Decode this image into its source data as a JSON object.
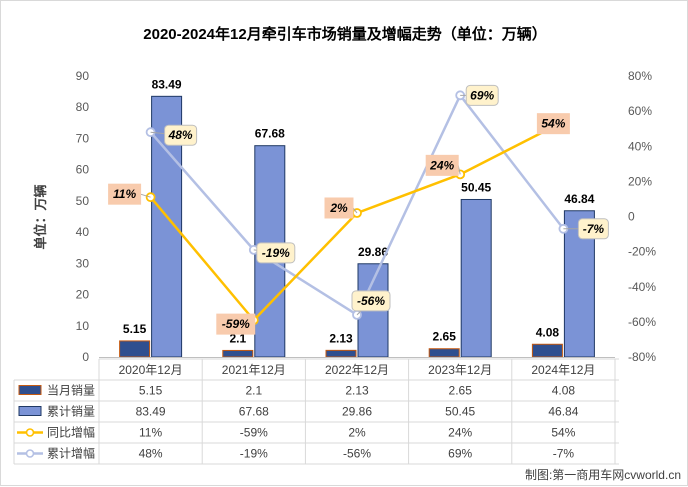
{
  "chart_data": {
    "type": "bar",
    "title": "2020-2024年12月牵引车市场销量及增幅走势（单位：万辆）",
    "ylabel": "单位：万辆",
    "categories": [
      "2020年12月",
      "2021年12月",
      "2022年12月",
      "2023年12月",
      "2024年12月"
    ],
    "ylim": [
      0,
      90
    ],
    "yticks": [
      "0",
      "10",
      "20",
      "30",
      "40",
      "50",
      "60",
      "70",
      "80",
      "90"
    ],
    "y2lim": [
      -80,
      80
    ],
    "y2ticks": [
      "-80%",
      "-60%",
      "-40%",
      "-20%",
      "0",
      "20%",
      "40%",
      "60%",
      "80%"
    ],
    "series": [
      {
        "name": "当月销量",
        "kind": "bar",
        "axis": "left",
        "values": [
          5.15,
          2.1,
          2.13,
          2.65,
          4.08
        ],
        "labels": [
          "5.15",
          "2.1",
          "2.13",
          "2.65",
          "4.08"
        ],
        "color": "#2f4f8f"
      },
      {
        "name": "累计销量",
        "kind": "bar",
        "axis": "left",
        "values": [
          83.49,
          67.68,
          29.86,
          50.45,
          46.84
        ],
        "labels": [
          "83.49",
          "67.68",
          "29.86",
          "50.45",
          "46.84"
        ],
        "color": "#7b93d6"
      },
      {
        "name": "同比增幅",
        "kind": "line",
        "axis": "right",
        "values": [
          11,
          -59,
          2,
          24,
          54
        ],
        "labels": [
          "11%",
          "-59%",
          "2%",
          "24%",
          "54%"
        ],
        "color": "#ffc000"
      },
      {
        "name": "累计增幅",
        "kind": "line",
        "axis": "right",
        "values": [
          48,
          -19,
          -56,
          69,
          -7
        ],
        "labels": [
          "48%",
          "-19%",
          "-56%",
          "69%",
          "-7%"
        ],
        "color": "#b4c0e4"
      }
    ],
    "grid": false,
    "legend": "data-table-below"
  },
  "table": {
    "rows": [
      {
        "label": "当月销量",
        "cells": [
          "5.15",
          "2.1",
          "2.13",
          "2.65",
          "4.08"
        ]
      },
      {
        "label": "累计销量",
        "cells": [
          "83.49",
          "67.68",
          "29.86",
          "50.45",
          "46.84"
        ]
      },
      {
        "label": "同比增幅",
        "cells": [
          "11%",
          "-59%",
          "2%",
          "24%",
          "54%"
        ]
      },
      {
        "label": "累计增幅",
        "cells": [
          "48%",
          "-19%",
          "-56%",
          "69%",
          "-7%"
        ]
      }
    ]
  },
  "footer": {
    "credit": "制图:第一商用车网cvworld.cn"
  }
}
